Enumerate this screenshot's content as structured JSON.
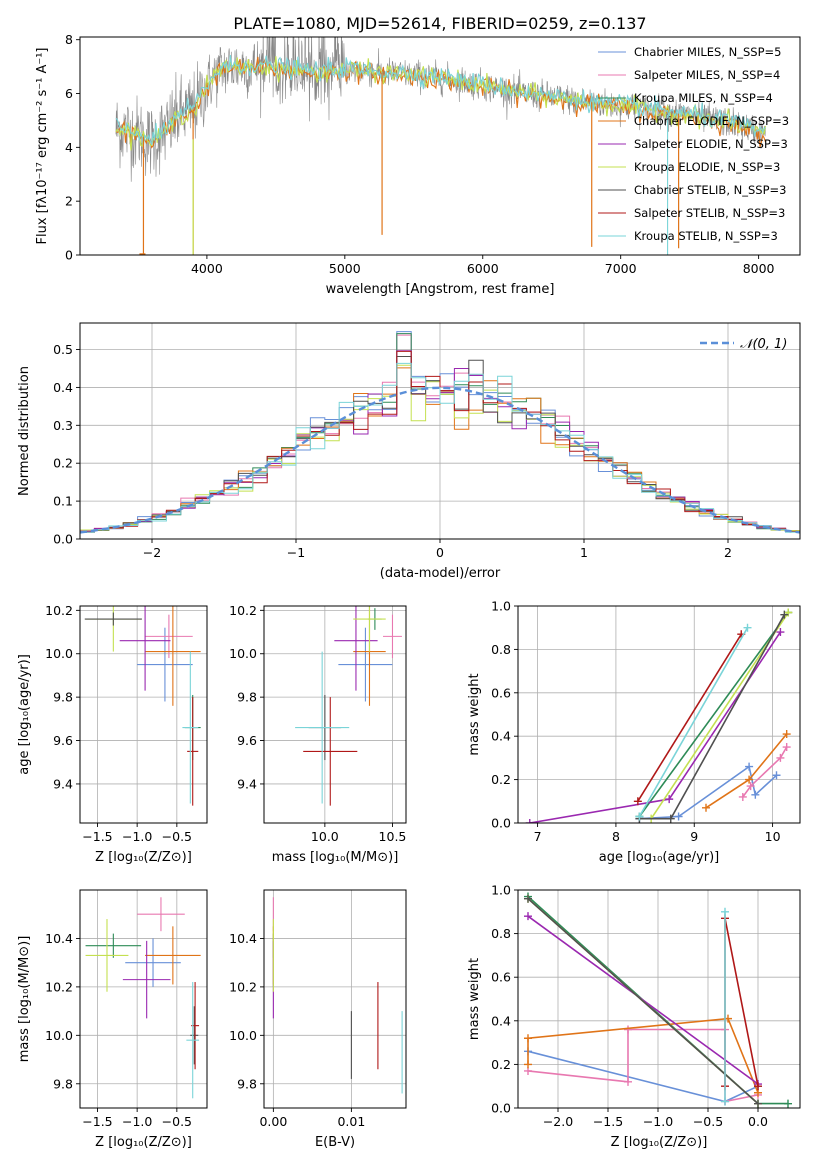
{
  "figure": {
    "title": "PLATE=1080, MJD=52614, FIBERID=0259, z=0.137"
  },
  "colors": {
    "cm": "#6890d8",
    "sm": "#e878b0",
    "km": "#2e8b57",
    "ce": "#e07418",
    "se": "#9a28b0",
    "ke": "#c4e050",
    "cs": "#505050",
    "ss": "#b01818",
    "ks": "#7ad4d8",
    "gauss": "#5a8fd8",
    "grid": "#b0b0b0"
  },
  "chart_data": [
    {
      "id": "spectrum",
      "type": "line",
      "xlabel": "wavelength [Angstrom, rest frame]",
      "ylabel": "Flux [fλ10⁻¹⁷ erg cm⁻² s⁻¹ A⁻¹]",
      "xlim": [
        3080,
        8300
      ],
      "ylim": [
        0,
        8.1
      ],
      "xticks": [
        "4000",
        "5000",
        "6000",
        "7000",
        "8000"
      ],
      "yticks": [
        "0",
        "2",
        "4",
        "6",
        "8"
      ],
      "grid": false,
      "legend_position": "right",
      "legend": [
        "Chabrier MILES, N_SSP=5",
        "Salpeter MILES, N_SSP=4",
        "Kroupa MILES, N_SSP=4",
        "Chabrier ELODIE, N_SSP=3",
        "Salpeter ELODIE, N_SSP=3",
        "Kroupa ELODIE, N_SSP=3",
        "Chabrier STELIB, N_SSP=3",
        "Salpeter STELIB, N_SSP=3",
        "Kroupa STELIB, N_SSP=3"
      ],
      "continuum": {
        "x": [
          3340,
          3500,
          3600,
          3700,
          3800,
          3900,
          4000,
          4100,
          4200,
          4400,
          4600,
          4800,
          5000,
          5200,
          5500,
          5800,
          6000,
          6300,
          6600,
          6900,
          7200,
          7500,
          7800,
          8000,
          8050
        ],
        "y": [
          4.7,
          4.5,
          4.2,
          4.6,
          5.2,
          5.4,
          6.3,
          6.9,
          7.0,
          7.0,
          6.9,
          6.8,
          6.9,
          6.8,
          6.7,
          6.5,
          6.3,
          6.0,
          5.8,
          5.6,
          5.4,
          5.2,
          4.9,
          4.6,
          4.5
        ]
      },
      "dips": [
        {
          "x": 3540,
          "y": 0.0
        },
        {
          "x": 3900,
          "y": 0.0
        },
        {
          "x": 5270,
          "y": 0.75
        },
        {
          "x": 6790,
          "y": 0.3
        },
        {
          "x": 7420,
          "y": 0.25
        }
      ]
    },
    {
      "id": "residuals",
      "type": "histogram",
      "xlabel": "(data-model)/error",
      "ylabel": "Normed distribution",
      "xlim": [
        -2.5,
        2.5
      ],
      "ylim": [
        0,
        0.57
      ],
      "xticks": [
        "−2",
        "−1",
        "0",
        "1",
        "2"
      ],
      "yticks": [
        "0.0",
        "0.1",
        "0.2",
        "0.3",
        "0.4",
        "0.5"
      ],
      "grid": true,
      "bin_width": 0.1,
      "legend": "𝒩(0, 1)",
      "legend_position": "top-right",
      "overlay": "normal pdf (0,1)"
    },
    {
      "id": "age_vs_z",
      "type": "errorbar",
      "xlabel": "Z [log₁₀(Z/Z⊙)]",
      "ylabel": "age  [log₁₀(age/yr)]",
      "xlim": [
        -1.72,
        -0.12
      ],
      "ylim": [
        9.22,
        10.22
      ],
      "xticks": [
        "−1.5",
        "−1.0",
        "−0.5"
      ],
      "yticks": [
        "9.4",
        "9.6",
        "9.8",
        "10.0",
        "10.2"
      ],
      "grid": true,
      "points": [
        {
          "s": "cm",
          "x": -0.65,
          "y": 9.95,
          "xe": 0.35,
          "ye": 0.17
        },
        {
          "s": "sm",
          "x": -0.6,
          "y": 10.08,
          "xe": 0.3,
          "ye": 0.1
        },
        {
          "s": "km",
          "x": -0.3,
          "y": 9.66,
          "xe": 0.1,
          "ye": 0.15
        },
        {
          "s": "ce",
          "x": -0.55,
          "y": 10.01,
          "xe": 0.35,
          "ye": 0.25
        },
        {
          "s": "se",
          "x": -0.9,
          "y": 10.06,
          "xe": 0.32,
          "ye": 0.23
        },
        {
          "s": "ke",
          "x": -1.3,
          "y": 10.16,
          "xe": 0.35,
          "ye": 0.15
        },
        {
          "s": "cs",
          "x": -1.3,
          "y": 10.16,
          "xe": 0.36,
          "ye": 0.03
        },
        {
          "s": "ss",
          "x": -0.3,
          "y": 9.55,
          "xe": 0.07,
          "ye": 0.25
        },
        {
          "s": "ks",
          "x": -0.33,
          "y": 9.66,
          "xe": 0.1,
          "ye": 0.35
        }
      ]
    },
    {
      "id": "age_vs_mass",
      "type": "errorbar",
      "xlabel": "mass [log₁₀(M/M⊙)]",
      "ylabel": "",
      "xlim": [
        9.55,
        10.6
      ],
      "ylim": [
        9.22,
        10.22
      ],
      "xticks": [
        "10.0",
        "10.5"
      ],
      "yticks": [
        "9.4",
        "9.6",
        "9.8",
        "10.0",
        "10.2"
      ],
      "grid": true,
      "points": [
        {
          "s": "cm",
          "x": 10.3,
          "y": 9.95,
          "xe": 0.2,
          "ye": 0.17
        },
        {
          "s": "sm",
          "x": 10.5,
          "y": 10.08,
          "xe": 0.07,
          "ye": 0.1
        },
        {
          "s": "km",
          "x": 10.37,
          "y": 10.16,
          "xe": 0.05,
          "ye": 0.05
        },
        {
          "s": "ce",
          "x": 10.33,
          "y": 10.01,
          "xe": 0.12,
          "ye": 0.25
        },
        {
          "s": "se",
          "x": 10.23,
          "y": 10.06,
          "xe": 0.16,
          "ye": 0.23
        },
        {
          "s": "ke",
          "x": 10.33,
          "y": 10.16,
          "xe": 0.12,
          "ye": 0.15
        },
        {
          "s": "cs",
          "x": 10.0,
          "y": 9.66,
          "xe": 0.12,
          "ye": 0.15
        },
        {
          "s": "ss",
          "x": 10.04,
          "y": 9.55,
          "xe": 0.2,
          "ye": 0.25
        },
        {
          "s": "ks",
          "x": 9.98,
          "y": 9.66,
          "xe": 0.2,
          "ye": 0.35
        }
      ]
    },
    {
      "id": "weight_vs_age",
      "type": "line",
      "xlabel": "age  [log₁₀(age/yr)]",
      "ylabel": "mass weight",
      "xlim": [
        6.75,
        10.35
      ],
      "ylim": [
        0,
        1
      ],
      "xticks": [
        "7",
        "8",
        "9",
        "10"
      ],
      "yticks": [
        "0.0",
        "0.2",
        "0.4",
        "0.6",
        "0.8",
        "1.0"
      ],
      "grid": true,
      "series": [
        {
          "s": "cm",
          "x": [
            8.3,
            8.8,
            9.7,
            9.78,
            10.05
          ],
          "y": [
            0.02,
            0.03,
            0.26,
            0.13,
            0.22
          ]
        },
        {
          "s": "sm",
          "x": [
            9.62,
            9.72,
            10.1,
            10.18
          ],
          "y": [
            0.12,
            0.17,
            0.3,
            0.35
          ]
        },
        {
          "s": "km",
          "x": [
            8.3,
            10.2
          ],
          "y": [
            0.03,
            0.97
          ]
        },
        {
          "s": "ce",
          "x": [
            9.15,
            9.7,
            10.18
          ],
          "y": [
            0.07,
            0.2,
            0.41
          ]
        },
        {
          "s": "se",
          "x": [
            6.9,
            8.68,
            10.1
          ],
          "y": [
            0.0,
            0.11,
            0.88
          ]
        },
        {
          "s": "ke",
          "x": [
            8.45,
            10.2
          ],
          "y": [
            0.02,
            0.97
          ]
        },
        {
          "s": "cs",
          "x": [
            8.3,
            8.7,
            10.15
          ],
          "y": [
            0.02,
            0.02,
            0.96
          ]
        },
        {
          "s": "ss",
          "x": [
            8.28,
            9.6
          ],
          "y": [
            0.1,
            0.87
          ]
        },
        {
          "s": "ks",
          "x": [
            8.3,
            9.68
          ],
          "y": [
            0.03,
            0.9
          ]
        }
      ]
    },
    {
      "id": "mass_vs_z",
      "type": "errorbar",
      "xlabel": "Z [log₁₀(Z/Z⊙)]",
      "ylabel": "mass [log₁₀(M/M⊙)]",
      "xlim": [
        -1.72,
        -0.12
      ],
      "ylim": [
        9.7,
        10.6
      ],
      "xticks": [
        "−1.5",
        "−1.0",
        "−0.5"
      ],
      "yticks": [
        "9.8",
        "10.0",
        "10.2",
        "10.4"
      ],
      "grid": true,
      "points": [
        {
          "s": "cm",
          "x": -0.8,
          "y": 10.3,
          "xe": 0.35,
          "ye": 0.1
        },
        {
          "s": "sm",
          "x": -0.7,
          "y": 10.5,
          "xe": 0.3,
          "ye": 0.07
        },
        {
          "s": "km",
          "x": -1.3,
          "y": 10.37,
          "xe": 0.35,
          "ye": 0.05
        },
        {
          "s": "ce",
          "x": -0.55,
          "y": 10.33,
          "xe": 0.35,
          "ye": 0.12
        },
        {
          "s": "se",
          "x": -0.88,
          "y": 10.23,
          "xe": 0.3,
          "ye": 0.16
        },
        {
          "s": "ke",
          "x": -1.38,
          "y": 10.33,
          "xe": 0.27,
          "ye": 0.15
        },
        {
          "s": "cs",
          "x": -0.28,
          "y": 10.0,
          "xe": 0.05,
          "ye": 0.12
        },
        {
          "s": "ss",
          "x": -0.27,
          "y": 10.04,
          "xe": 0.05,
          "ye": 0.18
        },
        {
          "s": "ks",
          "x": -0.3,
          "y": 9.98,
          "xe": 0.08,
          "ye": 0.24
        }
      ]
    },
    {
      "id": "mass_vs_ebv",
      "type": "errorbar",
      "xlabel": "E(B-V)",
      "ylabel": "",
      "xlim": [
        -0.0012,
        0.017
      ],
      "ylim": [
        9.7,
        10.6
      ],
      "xticks": [
        "0.00",
        "0.01"
      ],
      "yticks": [
        "9.8",
        "10.0",
        "10.2",
        "10.4"
      ],
      "grid": true,
      "points": [
        {
          "s": "cm",
          "x": 0.0,
          "y": 10.3,
          "xe": 0,
          "ye": 0.1
        },
        {
          "s": "sm",
          "x": 0.0,
          "y": 10.5,
          "xe": 0,
          "ye": 0.07
        },
        {
          "s": "km",
          "x": 0.0,
          "y": 10.37,
          "xe": 0,
          "ye": 0.05
        },
        {
          "s": "ce",
          "x": 0.0,
          "y": 10.33,
          "xe": 0,
          "ye": 0.12
        },
        {
          "s": "se",
          "x": 0.0,
          "y": 10.23,
          "xe": 0,
          "ye": 0.16
        },
        {
          "s": "ke",
          "x": 0.0,
          "y": 10.33,
          "xe": 0,
          "ye": 0.15
        },
        {
          "s": "cs",
          "x": 0.01,
          "y": 9.96,
          "xe": 0,
          "ye": 0.14
        },
        {
          "s": "ss",
          "x": 0.0134,
          "y": 10.04,
          "xe": 0,
          "ye": 0.18
        },
        {
          "s": "ks",
          "x": 0.0165,
          "y": 9.93,
          "xe": 0,
          "ye": 0.17
        }
      ]
    },
    {
      "id": "weight_vs_z",
      "type": "line",
      "xlabel": "Z [log₁₀(Z/Z⊙)]",
      "ylabel": "mass weight",
      "xlim": [
        -2.4,
        0.42
      ],
      "ylim": [
        0,
        1
      ],
      "xticks": [
        "−2.0",
        "−1.5",
        "−1.0",
        "−0.5",
        "0.0"
      ],
      "yticks": [
        "0.0",
        "0.2",
        "0.4",
        "0.6",
        "0.8",
        "1.0"
      ],
      "grid": true,
      "series": [
        {
          "s": "cm",
          "x": [
            -2.3,
            -0.33,
            0.0
          ],
          "y": [
            0.26,
            0.03,
            0.1
          ]
        },
        {
          "s": "sm",
          "x": [
            -2.3,
            -1.3,
            -1.3,
            -0.33,
            -0.33,
            0.0
          ],
          "y": [
            0.17,
            0.12,
            0.36,
            0.36,
            0.03,
            0.06
          ]
        },
        {
          "s": "km",
          "x": [
            -2.3,
            0.0,
            0.3
          ],
          "y": [
            0.97,
            0.02,
            0.02
          ]
        },
        {
          "s": "ce",
          "x": [
            -2.3,
            -2.3,
            -0.3,
            0.0
          ],
          "y": [
            0.2,
            0.32,
            0.41,
            0.07
          ]
        },
        {
          "s": "se",
          "x": [
            -2.3,
            0.0
          ],
          "y": [
            0.88,
            0.11
          ]
        },
        {
          "s": "ke",
          "x": [
            -2.3,
            0.0
          ],
          "y": [
            0.96,
            0.02
          ]
        },
        {
          "s": "cs",
          "x": [
            -2.3,
            0.0
          ],
          "y": [
            0.96,
            0.02
          ]
        },
        {
          "s": "ss",
          "x": [
            -0.33,
            -0.33,
            0.0
          ],
          "y": [
            0.1,
            0.87,
            0.1
          ]
        },
        {
          "s": "ks",
          "x": [
            -0.33,
            -0.33
          ],
          "y": [
            0.03,
            0.9
          ]
        }
      ]
    }
  ]
}
